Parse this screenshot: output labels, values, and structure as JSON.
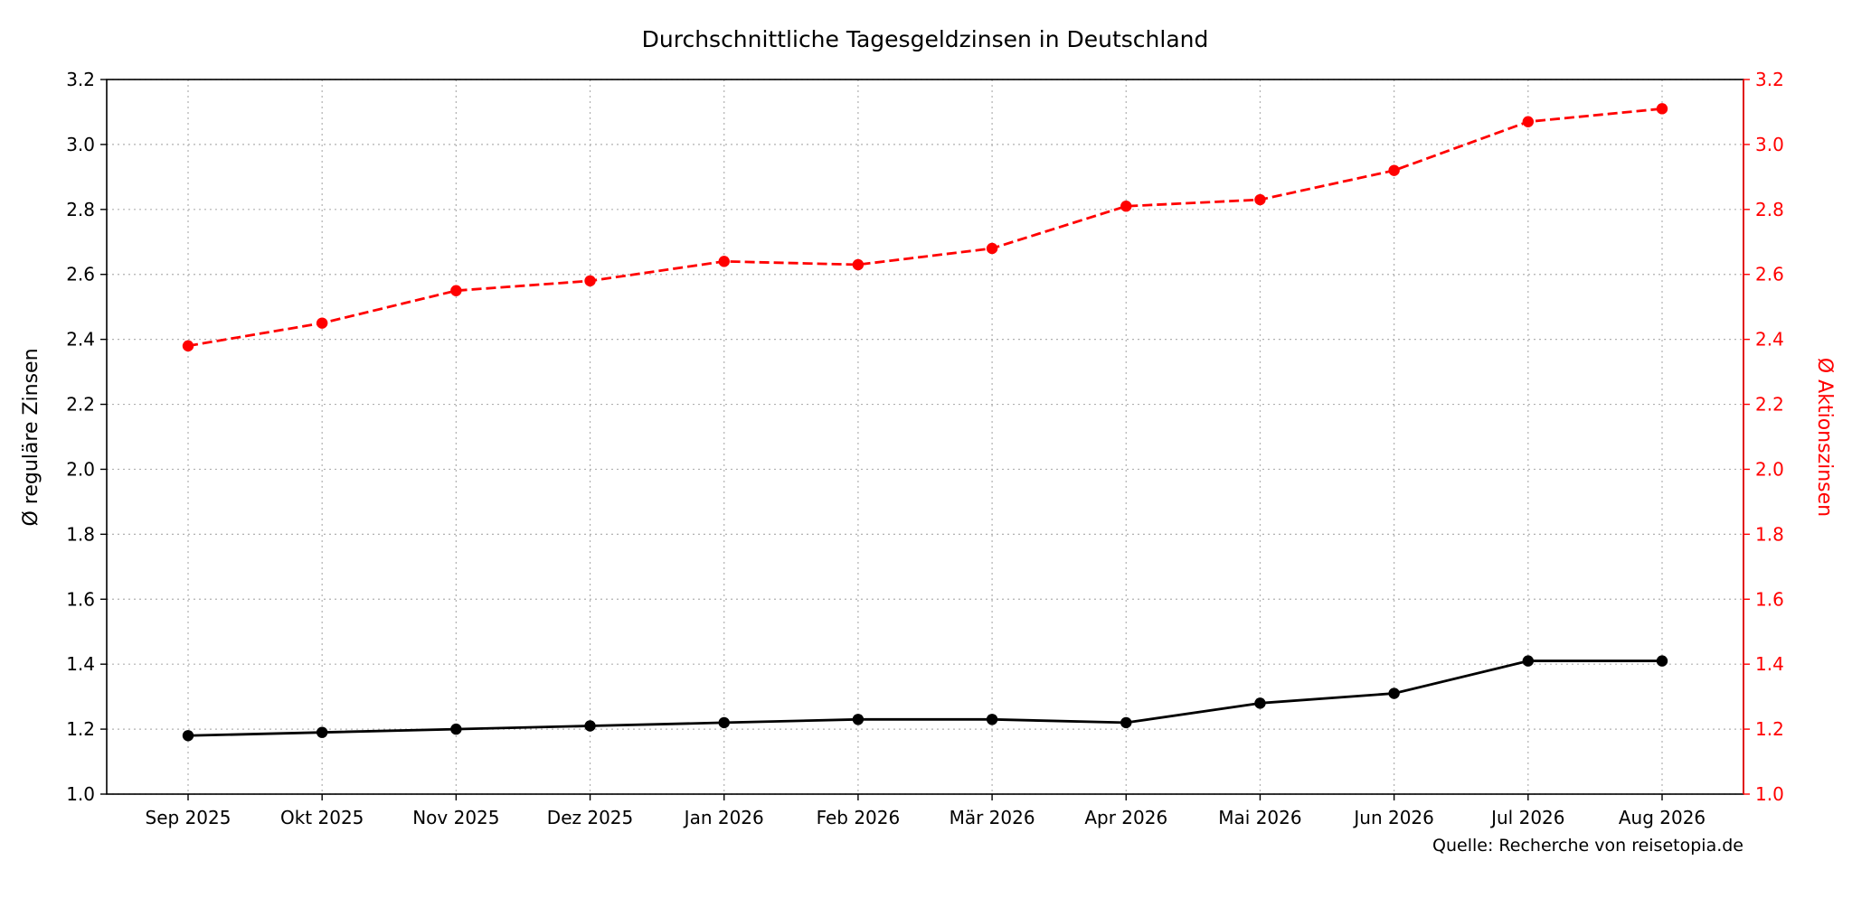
{
  "chart_data": {
    "type": "line",
    "title": "Durchschnittliche Tagesgeldzinsen in Deutschland",
    "source": "Quelle: Recherche von reisetopia.de",
    "categories": [
      "Sep 2025",
      "Okt 2025",
      "Nov 2025",
      "Dez 2025",
      "Jan 2026",
      "Feb 2026",
      "Mär 2026",
      "Apr 2026",
      "Mai 2026",
      "Jun 2026",
      "Jul 2026",
      "Aug 2026"
    ],
    "ylabel_left": "Ø reguläre Zinsen",
    "ylabel_right": "Ø Aktionszinsen",
    "ylim_left": [
      1.0,
      3.2
    ],
    "ylim_right": [
      1.0,
      3.2
    ],
    "yticks": [
      "1.0",
      "1.2",
      "1.4",
      "1.6",
      "1.8",
      "2.0",
      "2.2",
      "2.4",
      "2.6",
      "2.8",
      "3.0",
      "3.2"
    ],
    "grid": true,
    "series": [
      {
        "axis": "left",
        "color": "#000000",
        "style": "solid",
        "values": [
          1.18,
          1.19,
          1.2,
          1.21,
          1.22,
          1.23,
          1.23,
          1.22,
          1.28,
          1.31,
          1.41,
          1.41
        ]
      },
      {
        "axis": "right",
        "color": "#ff0000",
        "style": "dashed",
        "values": [
          2.38,
          2.45,
          2.55,
          2.58,
          2.64,
          2.63,
          2.68,
          2.81,
          2.83,
          2.92,
          3.07,
          3.11
        ]
      }
    ],
    "colors": {
      "left_axis": "#000000",
      "right_axis": "#ff0000"
    }
  }
}
